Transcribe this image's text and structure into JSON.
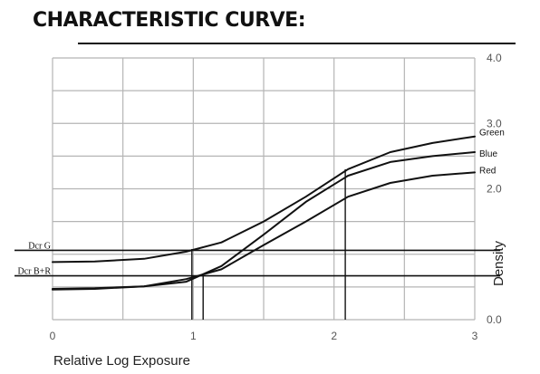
{
  "title": "CHARACTERISTIC CURVE:",
  "chart_data": {
    "type": "line",
    "xlabel": "Relative Log Exposure",
    "ylabel": "Density",
    "xlim": [
      0,
      3
    ],
    "ylim": [
      0,
      4
    ],
    "x_ticks": [
      "0",
      "1",
      "2",
      "3"
    ],
    "y_ticks": [
      "0.0",
      "2.0",
      "3.0",
      "4.0"
    ],
    "y_tick_values": [
      0,
      2,
      3,
      4
    ],
    "grid": true,
    "series": [
      {
        "name": "Green",
        "x": [
          0,
          0.3,
          0.65,
          0.95,
          1.2,
          1.5,
          1.8,
          2.1,
          2.4,
          2.7,
          3.0
        ],
        "y": [
          0.88,
          0.89,
          0.93,
          1.04,
          1.18,
          1.5,
          1.88,
          2.3,
          2.56,
          2.7,
          2.8
        ]
      },
      {
        "name": "Blue",
        "x": [
          0,
          0.3,
          0.65,
          0.95,
          1.2,
          1.5,
          1.8,
          2.1,
          2.4,
          2.7,
          3.0
        ],
        "y": [
          0.47,
          0.48,
          0.51,
          0.58,
          0.82,
          1.3,
          1.8,
          2.2,
          2.41,
          2.5,
          2.56
        ]
      },
      {
        "name": "Red",
        "x": [
          0,
          0.3,
          0.65,
          0.95,
          1.2,
          1.5,
          1.8,
          2.1,
          2.4,
          2.7,
          3.0
        ],
        "y": [
          0.46,
          0.47,
          0.51,
          0.62,
          0.77,
          1.14,
          1.5,
          1.88,
          2.09,
          2.2,
          2.25
        ]
      }
    ],
    "reference_lines": [
      {
        "label": "Dcr G",
        "y": 1.06
      },
      {
        "label": "Dcr B+R",
        "y": 0.67
      }
    ],
    "drop_lines_x": [
      0.99,
      1.07,
      2.08
    ]
  }
}
